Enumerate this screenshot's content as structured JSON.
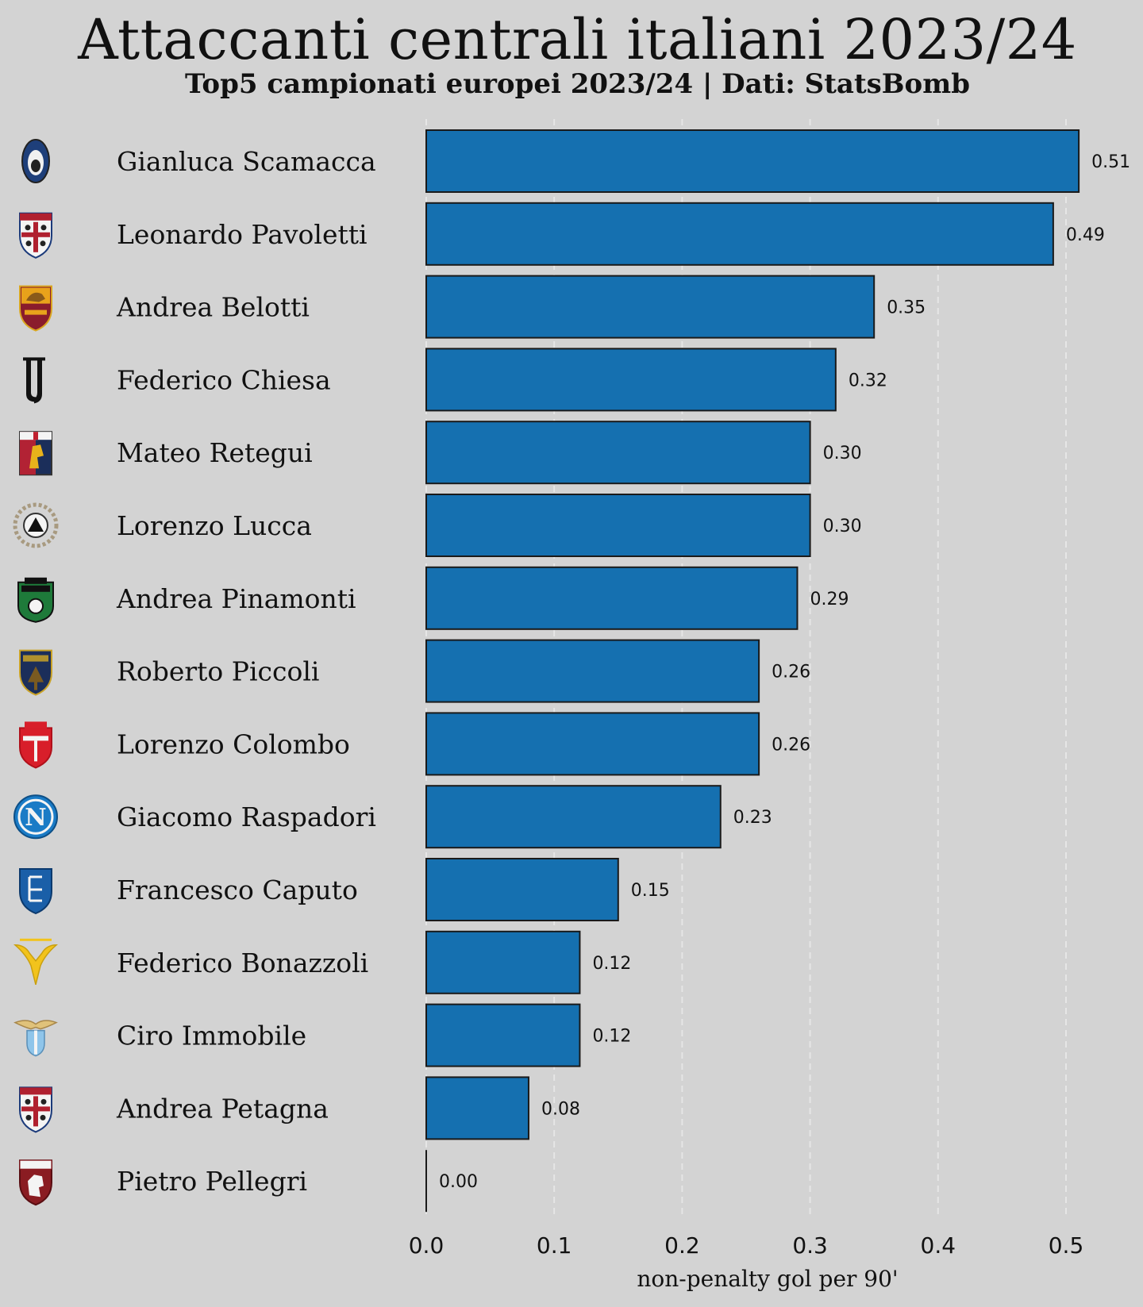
{
  "title": "Attaccanti centrali italiani 2023/24",
  "subtitle": "Top5 campionati europei 2023/24 | Dati: StatsBomb",
  "chart_data": {
    "type": "bar",
    "orientation": "horizontal",
    "categories": [
      "Gianluca Scamacca",
      "Leonardo Pavoletti",
      "Andrea Belotti",
      "Federico Chiesa",
      "Mateo Retegui",
      "Lorenzo Lucca",
      "Andrea Pinamonti",
      "Roberto Piccoli",
      "Lorenzo Colombo",
      "Giacomo Raspadori",
      "Francesco Caputo",
      "Federico Bonazzoli",
      "Ciro Immobile",
      "Andrea Petagna",
      "Pietro Pellegri"
    ],
    "values": [
      0.51,
      0.49,
      0.35,
      0.32,
      0.3,
      0.3,
      0.29,
      0.26,
      0.26,
      0.23,
      0.15,
      0.12,
      0.12,
      0.08,
      0.0
    ],
    "value_labels": [
      "0.51",
      "0.49",
      "0.35",
      "0.32",
      "0.30",
      "0.30",
      "0.29",
      "0.26",
      "0.26",
      "0.23",
      "0.15",
      "0.12",
      "0.12",
      "0.08",
      "0.00"
    ],
    "team_icons": [
      "atalanta-crest-icon",
      "cagliari-crest-icon",
      "roma-crest-icon",
      "juventus-crest-icon",
      "genoa-crest-icon",
      "udinese-crest-icon",
      "sassuolo-crest-icon",
      "lecce-crest-icon",
      "monza-crest-icon",
      "napoli-crest-icon",
      "empoli-crest-icon",
      "verona-crest-icon",
      "lazio-crest-icon",
      "cagliari-crest-icon",
      "torino-crest-icon"
    ],
    "xlabel": "non-penalty gol per 90'",
    "ylabel": "",
    "xlim": [
      0,
      0.54
    ],
    "xticks": [
      0.0,
      0.1,
      0.2,
      0.3,
      0.4,
      0.5
    ],
    "xtick_labels": [
      "0.0",
      "0.1",
      "0.2",
      "0.3",
      "0.4",
      "0.5"
    ],
    "grid": "vertical dashed",
    "legend": "none",
    "colors": {
      "bar": "#1570b0",
      "bar_edge": "#1a1a1a",
      "background": "#d3d3d3",
      "grid": "#e6e6e6"
    }
  }
}
